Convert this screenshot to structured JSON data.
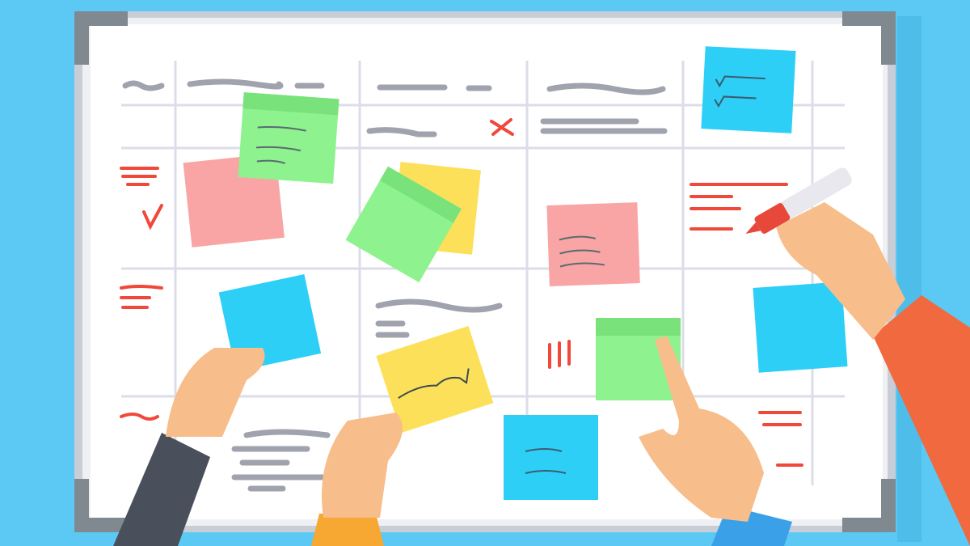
{
  "colors": {
    "background": "#5cc9f5",
    "board": "#ffffff",
    "frame": "#c9ced6",
    "corner": "#808890",
    "grid": "#dcdde8",
    "scribble_gray": "#a0a3ad",
    "scribble_red": "#f0493a",
    "note_green": "#8ef28e",
    "note_pink": "#f9a5a5",
    "note_yellow": "#fde05a",
    "note_blue": "#2ecff7",
    "skin": "#f7bd8a",
    "marker": "#e8483a"
  }
}
